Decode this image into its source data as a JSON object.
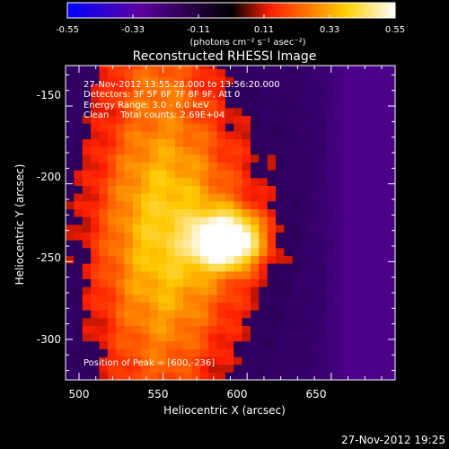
{
  "colorbar": {
    "ticks": [
      "-0.55",
      "-0.33",
      "-0.11",
      "0.11",
      "0.33",
      "0.55"
    ],
    "tick_values": [
      -0.55,
      -0.33,
      -0.11,
      0.11,
      0.33,
      0.55
    ],
    "range": [
      -0.55,
      0.55
    ],
    "units": "(photons cm⁻² s⁻¹ asec⁻²)",
    "colors": [
      "#0000ff",
      "#5a00a0",
      "#000000",
      "#ff2000",
      "#ffff40",
      "#ffffff"
    ]
  },
  "chart_data": {
    "type": "heatmap",
    "title": "Reconstructed RHESSI Image",
    "xlabel": "Heliocentric X (arcsec)",
    "ylabel": "Heliocentric Y (arcsec)",
    "xlim": [
      492,
      688
    ],
    "ylim": [
      -326,
      -124
    ],
    "x_ticks": [
      500,
      550,
      600,
      650
    ],
    "y_ticks": [
      -150,
      -200,
      -250,
      -300
    ],
    "info_lines": [
      "27-Nov-2012 13:55:28.000 to 13:56:20.000",
      "Detectors: 3F 5F 6F 7F 8F 9F, Att 0",
      "Energy Range: 3.0 - 6.0 keV",
      "Clean    Total counts: 2.69E+04"
    ],
    "peak_label": "Position of Peak = [600,-236]",
    "peak": [
      600,
      -236
    ]
  },
  "footer": {
    "timestamp": "27-Nov-2012 19:25"
  }
}
